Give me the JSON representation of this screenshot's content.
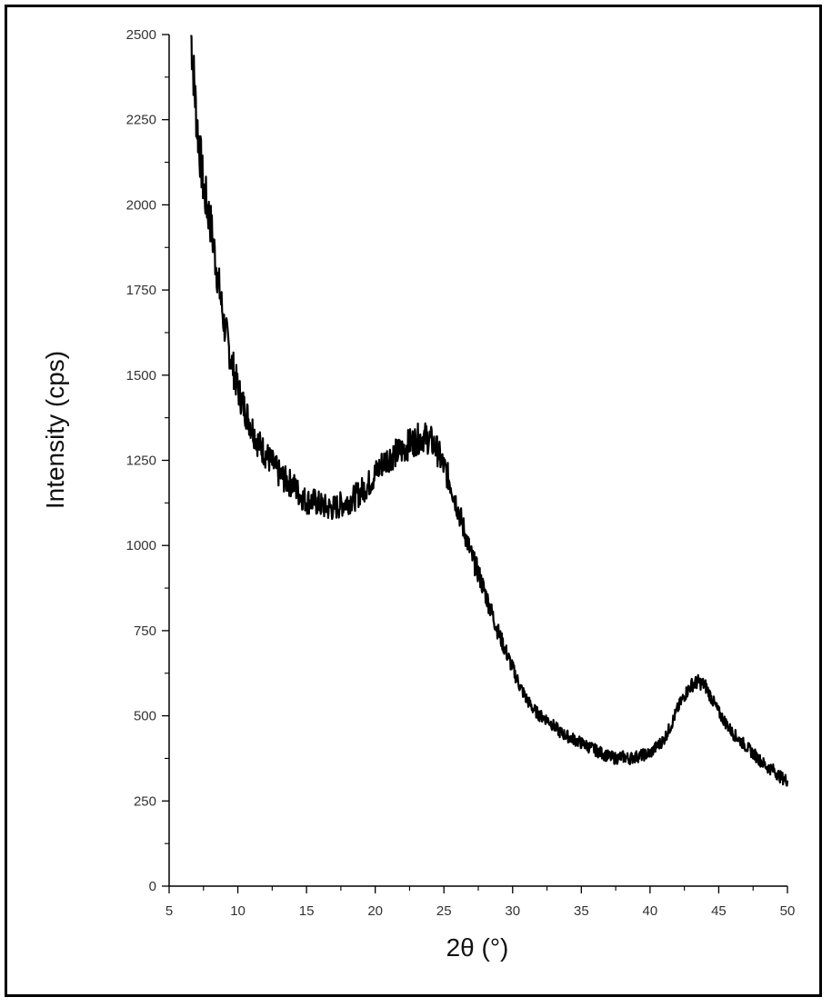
{
  "chart_data": {
    "type": "line",
    "title": "",
    "xlabel": "2θ (°)",
    "ylabel": "Intensity (cps)",
    "xlim": [
      5,
      50
    ],
    "ylim": [
      0,
      2500
    ],
    "xticks": [
      5,
      10,
      15,
      20,
      25,
      30,
      35,
      40,
      45,
      50
    ],
    "yticks": [
      0,
      250,
      500,
      750,
      1000,
      1250,
      1500,
      1750,
      2000,
      2250,
      2500
    ],
    "grid": false,
    "legend": "none",
    "line_color": "#000000",
    "series": [
      {
        "x": [
          6.6,
          7.0,
          7.5,
          8.0,
          8.5,
          9.0,
          9.5,
          10.0,
          10.5,
          11.0,
          11.5,
          12.0,
          12.5,
          13.0,
          13.5,
          14.0,
          14.5,
          15.0,
          15.5,
          16.0,
          16.5,
          17.0,
          17.5,
          18.0,
          18.5,
          19.0,
          19.5,
          20.0,
          20.5,
          21.0,
          21.5,
          22.0,
          22.5,
          23.0,
          23.5,
          24.0,
          24.5,
          25.0,
          25.5,
          26.0,
          26.5,
          27.0,
          27.5,
          28.0,
          28.5,
          29.0,
          29.5,
          30.0,
          30.5,
          31.0,
          31.5,
          32.0,
          32.5,
          33.0,
          33.5,
          34.0,
          34.5,
          35.0,
          35.5,
          36.0,
          36.5,
          37.0,
          37.5,
          38.0,
          38.5,
          39.0,
          39.5,
          40.0,
          40.5,
          41.0,
          41.5,
          42.0,
          42.5,
          43.0,
          43.5,
          44.0,
          44.5,
          45.0,
          45.5,
          46.0,
          46.5,
          47.0,
          47.5,
          48.0,
          48.5,
          49.0,
          49.5,
          50.0
        ],
        "values": [
          2500,
          2250,
          2050,
          1950,
          1800,
          1650,
          1550,
          1460,
          1400,
          1350,
          1300,
          1270,
          1240,
          1210,
          1190,
          1180,
          1150,
          1130,
          1130,
          1120,
          1110,
          1110,
          1120,
          1130,
          1140,
          1160,
          1180,
          1210,
          1240,
          1260,
          1270,
          1280,
          1300,
          1310,
          1320,
          1310,
          1280,
          1230,
          1180,
          1110,
          1040,
          970,
          920,
          860,
          800,
          740,
          690,
          640,
          590,
          550,
          520,
          500,
          490,
          470,
          450,
          440,
          430,
          420,
          410,
          400,
          390,
          380,
          375,
          380,
          375,
          380,
          385,
          390,
          410,
          430,
          470,
          520,
          560,
          590,
          600,
          590,
          550,
          510,
          480,
          450,
          430,
          410,
          390,
          370,
          350,
          340,
          320,
          310
        ]
      }
    ]
  }
}
